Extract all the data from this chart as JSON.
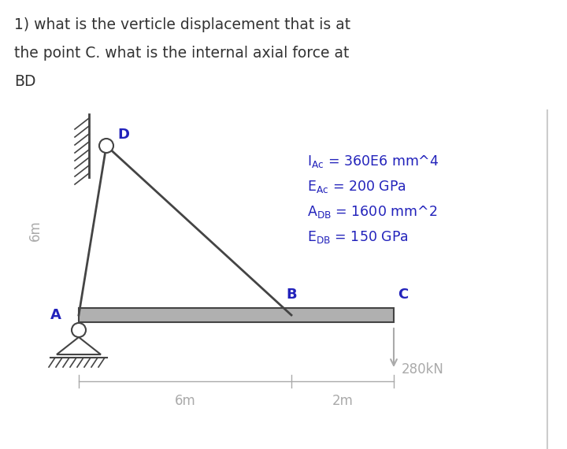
{
  "title_line1": "1) what is the verticle displacement that is at",
  "title_line2": "the point C. what is the internal axial force at",
  "title_line3": "BD",
  "bg_color": "#ffffff",
  "text_color": "#333333",
  "blue_color": "#2222bb",
  "gray_color": "#b0b0b0",
  "dark_color": "#444444",
  "dim_color": "#aaaaaa",
  "label_A": "A",
  "label_B": "B",
  "label_C": "C",
  "label_D": "D",
  "dim_left": "6m",
  "dim_horiz1": "6m",
  "dim_horiz2": "2m",
  "force_label": "280kN",
  "props": [
    [
      "I",
      "Ac",
      " = 360E6 mm^4"
    ],
    [
      "E",
      "Ac",
      " = 200 GPa"
    ],
    [
      "A",
      "DB",
      " = 1600 mm^2"
    ],
    [
      "E",
      "DB",
      " = 150 GPa"
    ]
  ]
}
